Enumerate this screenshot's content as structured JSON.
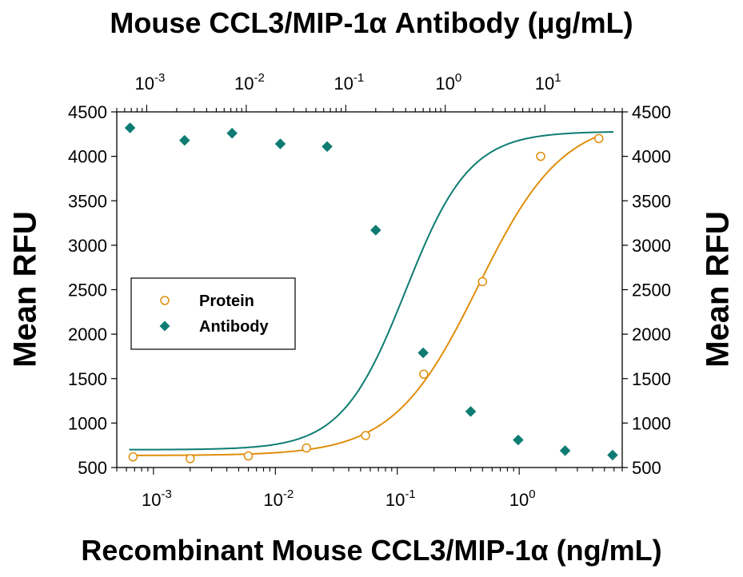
{
  "chart_data": {
    "type": "scatter",
    "title": "Mouse CCL3/MIP-1α Antibody (μg/mL)",
    "xlabel": "Recombinant Mouse CCL3/MIP-1α (ng/mL)",
    "ylabel_left": "Mean RFU",
    "ylabel_right": "Mean RFU",
    "x_scale": "log",
    "xlim": [
      0.0005,
      7
    ],
    "ylim": [
      500,
      4500
    ],
    "y_ticks": [
      "500",
      "1000",
      "1500",
      "2000",
      "2500",
      "3000",
      "3500",
      "4000",
      "4500"
    ],
    "x_ticks_bottom": [
      {
        "base": "10",
        "exp": "-3",
        "value": 0.001
      },
      {
        "base": "10",
        "exp": "-2",
        "value": 0.01
      },
      {
        "base": "10",
        "exp": "-1",
        "value": 0.1
      },
      {
        "base": "10",
        "exp": "0",
        "value": 1
      }
    ],
    "x_ticks_top": [
      {
        "base": "10",
        "exp": "-3",
        "value": 0.001
      },
      {
        "base": "10",
        "exp": "-2",
        "value": 0.01
      },
      {
        "base": "10",
        "exp": "-1",
        "value": 0.1
      },
      {
        "base": "10",
        "exp": "0",
        "value": 1
      },
      {
        "base": "10",
        "exp": "1",
        "value": 10
      }
    ],
    "top_xlim": [
      0.0005,
      60
    ],
    "legend_position": "middle-left",
    "series": [
      {
        "name": "Protein",
        "axis": "bottom",
        "color": "#E08E0B",
        "marker": "open-circle",
        "x": [
          0.00068,
          0.002,
          0.006,
          0.018,
          0.055,
          0.165,
          0.5,
          1.5,
          4.5
        ],
        "y": [
          620,
          600,
          630,
          720,
          860,
          1550,
          2590,
          4000,
          4200
        ]
      },
      {
        "name": "Antibody",
        "axis": "top",
        "color": "#0E7C72",
        "marker": "filled-diamond",
        "x": [
          0.00068,
          0.0024,
          0.0072,
          0.022,
          0.065,
          0.2,
          0.6,
          1.8,
          5.4,
          16,
          48
        ],
        "y": [
          4320,
          4180,
          4260,
          4140,
          4110,
          3170,
          1790,
          1130,
          810,
          690,
          640
        ]
      }
    ]
  }
}
